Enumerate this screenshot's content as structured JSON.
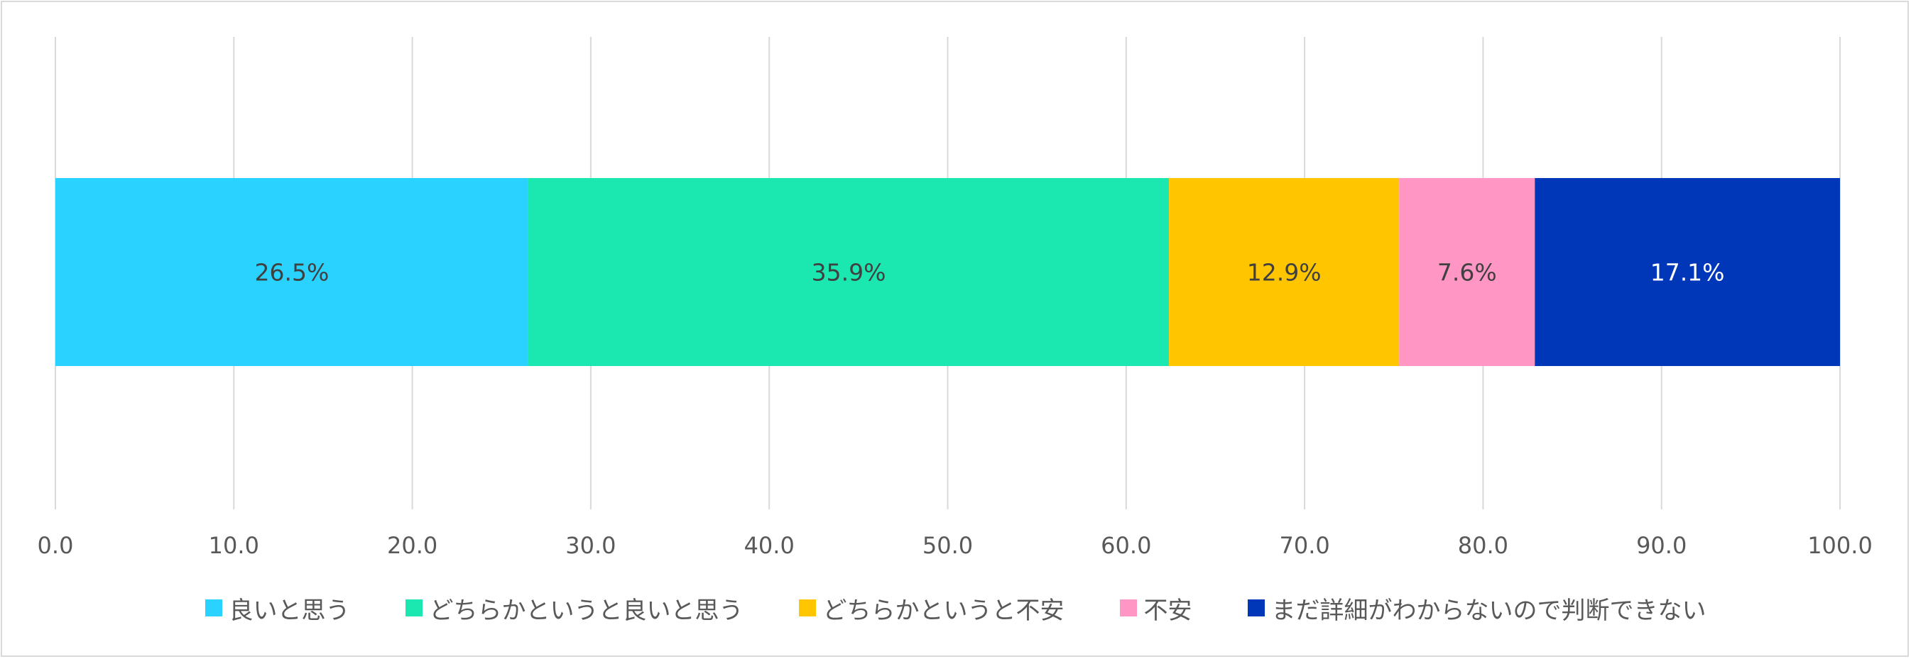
{
  "chart_data": {
    "type": "bar",
    "orientation": "horizontal",
    "stacked": true,
    "title": "",
    "xlabel": "",
    "ylabel": "",
    "xlim": [
      0,
      100
    ],
    "x_ticks": [
      "0.0",
      "10.0",
      "20.0",
      "30.0",
      "40.0",
      "50.0",
      "60.0",
      "70.0",
      "80.0",
      "90.0",
      "100.0"
    ],
    "grid": "vertical",
    "legend_position": "bottom",
    "series": [
      {
        "name": "良いと思う",
        "value": 26.5,
        "label": "26.5%",
        "color": "#29d2ff",
        "label_color": "#404040"
      },
      {
        "name": "どちらかというと良いと思う",
        "value": 35.9,
        "label": "35.9%",
        "color": "#1ae8b0",
        "label_color": "#404040"
      },
      {
        "name": "どちらかというと不安",
        "value": 12.9,
        "label": "12.9%",
        "color": "#ffc600",
        "label_color": "#404040"
      },
      {
        "name": "不安",
        "value": 7.6,
        "label": "7.6%",
        "color": "#ff96c3",
        "label_color": "#404040"
      },
      {
        "name": "まだ詳細がわからないので判断できない",
        "value": 17.1,
        "label": "17.1%",
        "color": "#0037b8",
        "label_color": "#ffffff"
      }
    ]
  }
}
